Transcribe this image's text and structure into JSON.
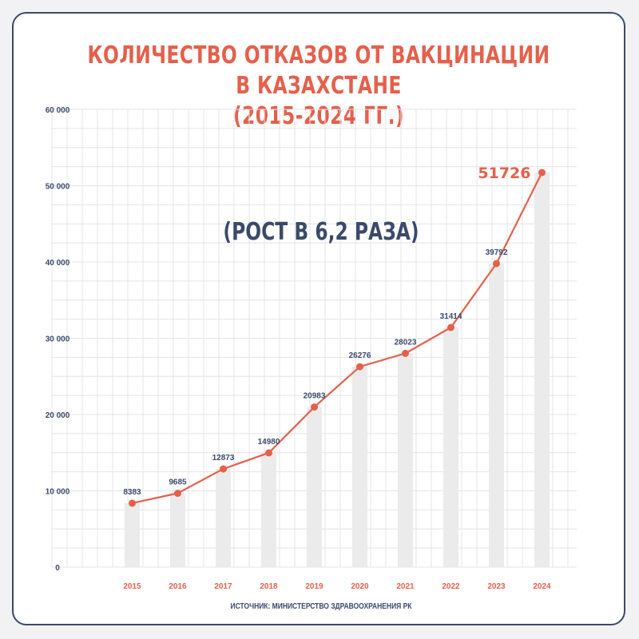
{
  "title_line1": "Количество отказов от вакцинации в Казахстане",
  "title_line2": "(2015-2024 гг.)",
  "annotation": "(РОСТ В  6,2 РАЗА)",
  "source": "ИСТОЧНИК: МИНИСТЕРСТВО ЗДРАВООХРАНЕНИЯ РК",
  "colors": {
    "accent": "#e5604b",
    "navy": "#3b4a6b",
    "bar": "#ebebeb",
    "grid": "#e4e4e8"
  },
  "chart_data": {
    "type": "bar",
    "categories": [
      "2015",
      "2016",
      "2017",
      "2018",
      "2019",
      "2020",
      "2021",
      "2022",
      "2023",
      "2024"
    ],
    "values": [
      8383,
      9685,
      12873,
      14980,
      20983,
      26276,
      28023,
      31414,
      39792,
      51726
    ],
    "overlay": "line",
    "ylim": [
      0,
      60000
    ],
    "yticks": [
      0,
      10000,
      20000,
      30000,
      40000,
      50000,
      60000
    ],
    "ytick_labels": [
      "0",
      "10 000",
      "20 000",
      "30 000",
      "40 000",
      "50 000",
      "60 000"
    ],
    "data_labels": [
      "8383",
      "9685",
      "12873",
      "14980",
      "20983",
      "26276",
      "28023",
      "31414",
      "39792",
      "51726"
    ],
    "grid": true
  }
}
